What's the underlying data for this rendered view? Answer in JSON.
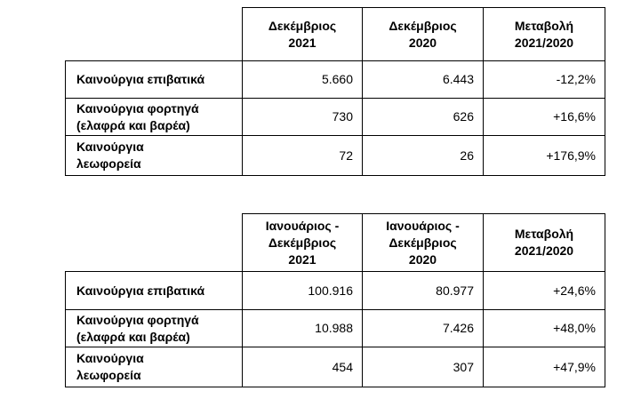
{
  "tables": [
    {
      "header": [
        "Δεκέμβριος\n2021",
        "Δεκέμβριος\n2020",
        "Μεταβολή\n2021/2020"
      ],
      "rows": [
        [
          "Καινούργια επιβατικά",
          "5.660",
          "6.443",
          "-12,2%"
        ],
        [
          "Καινούργια φορτηγά\n(ελαφρά και βαρέα)",
          "730",
          "626",
          "+16,6%"
        ],
        [
          "Καινούργια\nλεωφορεία",
          "72",
          "26",
          "+176,9%"
        ]
      ]
    },
    {
      "header": [
        "Ιανουάριος -\nΔεκέμβριος\n2021",
        "Ιανουάριος -\nΔεκέμβριος\n2020",
        "Μεταβολή\n2021/2020"
      ],
      "rows": [
        [
          "Καινούργια επιβατικά",
          "100.916",
          "80.977",
          "+24,6%"
        ],
        [
          "Καινούργια φορτηγά\n(ελαφρά και βαρέα)",
          "10.988",
          "7.426",
          "+48,0%"
        ],
        [
          "Καινούργια\nλεωφορεία",
          "454",
          "307",
          "+47,9%"
        ]
      ]
    }
  ]
}
